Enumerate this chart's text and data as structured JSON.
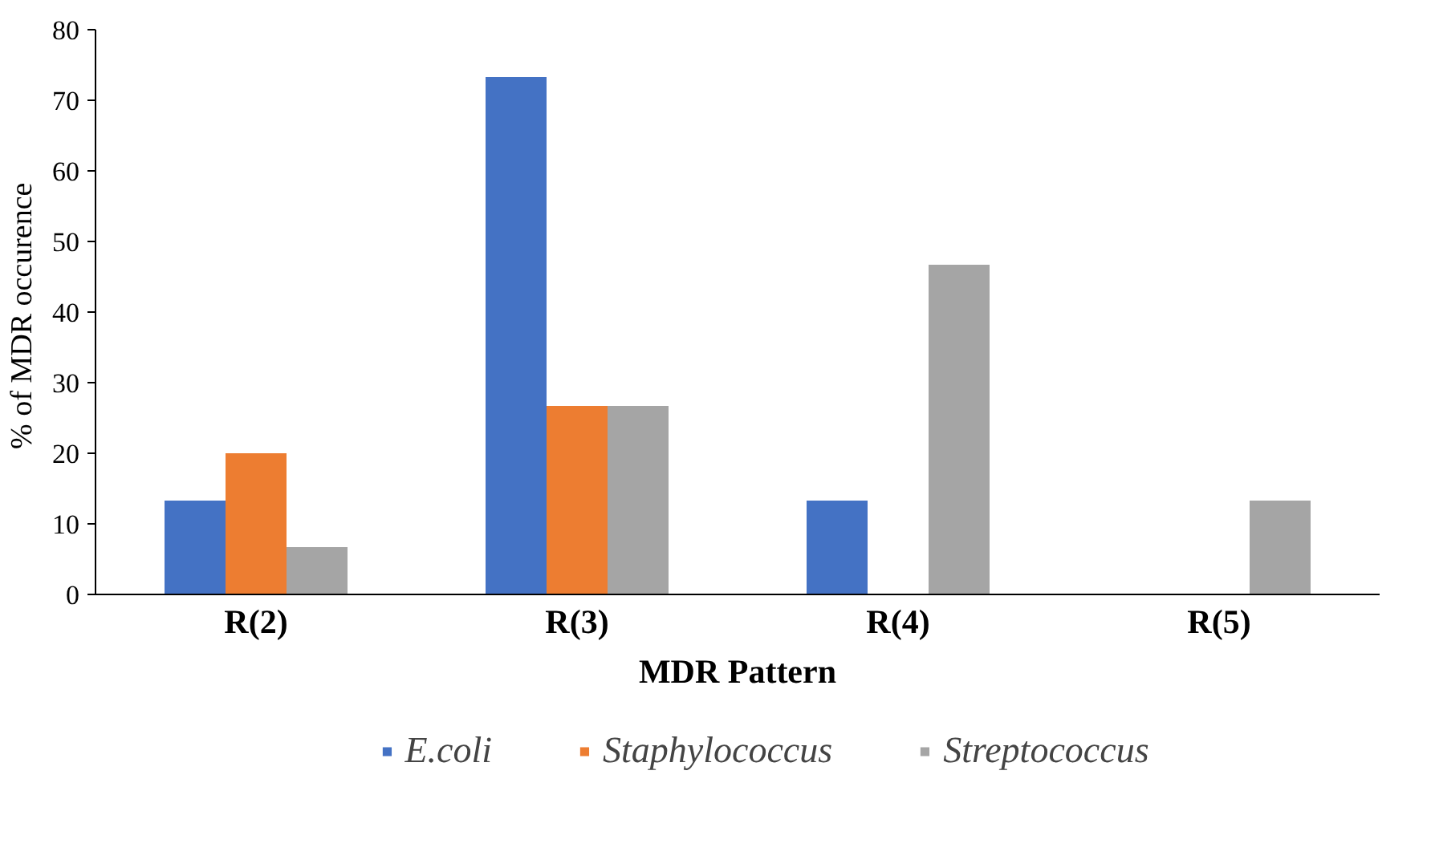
{
  "chart_data": {
    "type": "bar",
    "xlabel": "MDR Pattern",
    "ylabel": "% of MDR  occurence",
    "categories": [
      "R(2)",
      "R(3)",
      "R(4)",
      "R(5)"
    ],
    "series": [
      {
        "name": "E.coli",
        "color": "#4472c4",
        "values": [
          13.3,
          73.3,
          13.3,
          0
        ]
      },
      {
        "name": "Staphylococcus",
        "color": "#ed7d31",
        "values": [
          20,
          26.7,
          0,
          0
        ]
      },
      {
        "name": "Streptococcus",
        "color": "#a5a5a5",
        "values": [
          6.7,
          26.7,
          46.7,
          13.3
        ]
      }
    ],
    "ylim": [
      0,
      80
    ],
    "yticks": [
      0,
      10,
      20,
      30,
      40,
      50,
      60,
      70,
      80
    ],
    "grid": false,
    "legend": "bottom"
  }
}
